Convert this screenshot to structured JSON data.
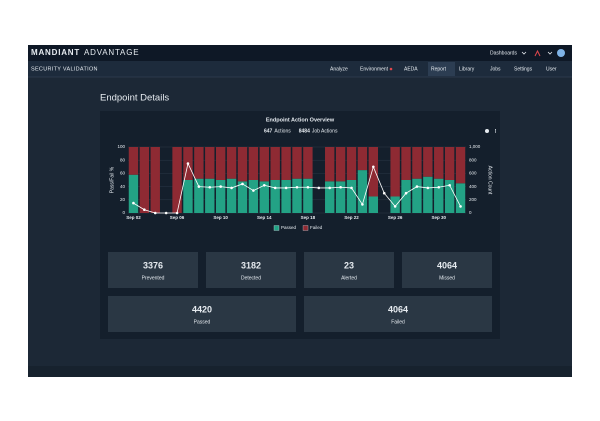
{
  "header": {
    "brand": "MANDIANT",
    "brand_suffix": "ADVANTAGE",
    "menu": "Dashboards"
  },
  "nav": {
    "product": "SECURITY VALIDATION",
    "items": [
      "Analyze",
      "Environment",
      "AEDA",
      "Report",
      "Library",
      "Jobs",
      "Settings",
      "User"
    ]
  },
  "page_title": "Endpoint Details",
  "chart_data": {
    "type": "bar",
    "stacked": true,
    "title": "Endpoint Action Overview",
    "summary": [
      {
        "count": 647,
        "label": "Actions"
      },
      {
        "count": 8484,
        "label": "Job Actions"
      }
    ],
    "ylabel": "Pass/Fail %",
    "y2label": "Action Count",
    "categories": [
      "Sep 02",
      null,
      null,
      null,
      "Sep 06",
      null,
      null,
      null,
      "Sep 10",
      null,
      null,
      null,
      "Sep 14",
      null,
      null,
      null,
      "Sep 18",
      null,
      null,
      null,
      "Sep 22",
      null,
      null,
      null,
      "Sep 26",
      null,
      null,
      null,
      "Sep 30",
      null,
      null
    ],
    "series": [
      {
        "name": "Passed",
        "color": "#23a285",
        "values": [
          58,
          0,
          0,
          null,
          0,
          50,
          52,
          52,
          50,
          52,
          48,
          50,
          48,
          50,
          50,
          52,
          52,
          null,
          48,
          48,
          50,
          65,
          25,
          null,
          25,
          50,
          52,
          55,
          52,
          50,
          45
        ]
      },
      {
        "name": "Failed",
        "color": "#8e2a33",
        "values": [
          42,
          100,
          100,
          null,
          100,
          50,
          48,
          48,
          50,
          48,
          52,
          50,
          52,
          50,
          50,
          48,
          48,
          null,
          52,
          52,
          50,
          35,
          75,
          null,
          75,
          50,
          48,
          45,
          48,
          50,
          55
        ]
      },
      {
        "type": "line",
        "axis": "y2",
        "color": "#ffffff",
        "values": [
          150,
          50,
          0,
          0,
          0,
          750,
          400,
          390,
          400,
          380,
          440,
          340,
          420,
          380,
          380,
          390,
          390,
          380,
          380,
          390,
          380,
          130,
          700,
          300,
          100,
          300,
          400,
          380,
          390,
          420,
          100
        ]
      }
    ],
    "ylim": [
      0,
      100
    ],
    "yticks": [
      0,
      20,
      40,
      60,
      80,
      100
    ],
    "y2lim": [
      0,
      1000
    ],
    "y2ticks": [
      0,
      200,
      400,
      600,
      800,
      {
        "value": 1000,
        "label": "1,000"
      }
    ],
    "legend": "bottom"
  },
  "stats": [
    {
      "value": 3376,
      "label": "Prevented"
    },
    {
      "value": 3182,
      "label": "Detected"
    },
    {
      "value": 23,
      "label": "Alerted"
    },
    {
      "value": 4064,
      "label": "Missed"
    },
    {
      "value": 4420,
      "label": "Passed"
    },
    {
      "value": 4064,
      "label": "Failed"
    }
  ]
}
